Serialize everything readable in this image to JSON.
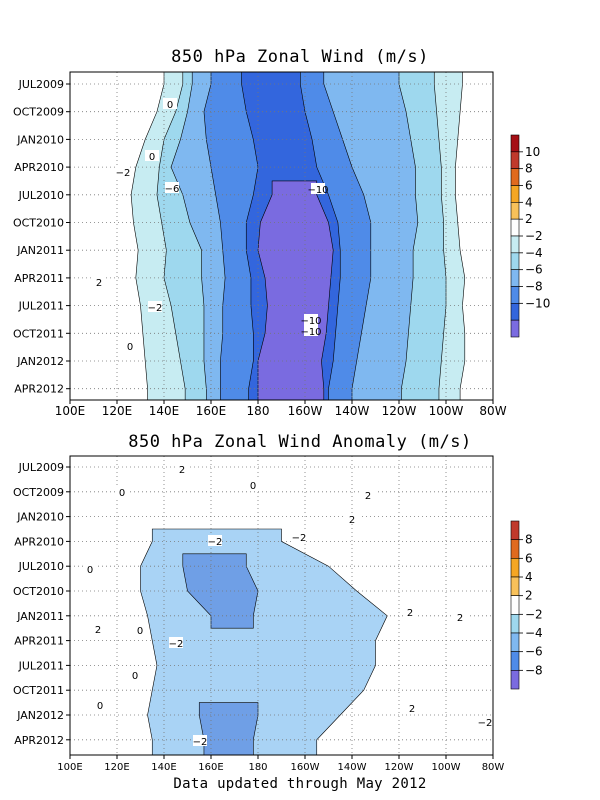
{
  "chart_data": [
    {
      "type": "heatmap",
      "title": "850 hPa Zonal Wind (m/s)",
      "x_ticks": [
        "100E",
        "120E",
        "140E",
        "160E",
        "180",
        "160W",
        "140W",
        "120W",
        "100W",
        "80W"
      ],
      "y_ticks": [
        "JUL2009",
        "OCT2009",
        "JAN2010",
        "APR2010",
        "JUL2010",
        "OCT2010",
        "JAN2011",
        "APR2011",
        "JUL2011",
        "OCT2011",
        "JAN2012",
        "APR2012"
      ],
      "xlim_deg": [
        100,
        280
      ],
      "colorbar": {
        "labels": [
          "10",
          "8",
          "6",
          "4",
          "2",
          "−2",
          "−4",
          "−6",
          "−8",
          "−10"
        ],
        "colors": [
          "#a50f15",
          "#c0392b",
          "#e06a1e",
          "#f5a623",
          "#f8c15a",
          "#ffffff",
          "#c7ecf2",
          "#9ed8ee",
          "#7fb8f0",
          "#4f8be8",
          "#3366dd",
          "#7a6be0"
        ]
      },
      "contour_labels": [
        "0",
        "0",
        "−2",
        "−6",
        "−10",
        "2",
        "−2",
        "0",
        "−10",
        "−10"
      ],
      "fill_bands": [
        {
          "level": "-2..-4",
          "color": "#c7ecf2",
          "lon_w": [
            140,
            137,
            132,
            128,
            126,
            127,
            129,
            128,
            130,
            131,
            132,
            133
          ],
          "lon_e": [
            267,
            266,
            265,
            264,
            264,
            265,
            266,
            268,
            267,
            268,
            268,
            266
          ]
        },
        {
          "level": "-4..-6",
          "color": "#9ed8ee",
          "lon_w": [
            148,
            145,
            140,
            138,
            137,
            139,
            141,
            140,
            143,
            145,
            147,
            149
          ],
          "lon_e": [
            255,
            256,
            257,
            258,
            258,
            259,
            259,
            260,
            260,
            259,
            258,
            257
          ]
        },
        {
          "level": "-6..-8",
          "color": "#7fb8f0",
          "lon_w": [
            152,
            150,
            147,
            143,
            148,
            151,
            156,
            156,
            157,
            157,
            157,
            158
          ],
          "lon_e": [
            240,
            243,
            245,
            247,
            247,
            248,
            246,
            246,
            245,
            244,
            243,
            241
          ]
        },
        {
          "level": "-8..-10",
          "color": "#4f8be8",
          "lon_w": [
            160,
            157,
            158,
            160,
            162,
            164,
            165,
            166,
            165,
            165,
            164,
            164
          ],
          "lon_e": [
            208,
            212,
            216,
            220,
            225,
            228,
            228,
            228,
            226,
            224,
            222,
            220
          ]
        },
        {
          "level": "-10..-12",
          "color": "#3366dd",
          "lon_w": [
            173,
            175,
            178,
            180,
            178,
            175,
            175,
            177,
            177,
            178,
            178,
            176
          ],
          "lon_e": [
            198,
            200,
            203,
            205,
            210,
            214,
            215,
            215,
            214,
            213,
            212,
            210
          ]
        },
        {
          "level": "<-10",
          "color": "#7a6be0",
          "lon_w": [
            null,
            null,
            null,
            null,
            186,
            181,
            180,
            183,
            184,
            183,
            180,
            180
          ],
          "lon_e": [
            null,
            null,
            null,
            null,
            205,
            210,
            212,
            211,
            210,
            209,
            207,
            208
          ]
        }
      ]
    },
    {
      "type": "heatmap",
      "title": "850 hPa Zonal Wind Anomaly (m/s)",
      "x_ticks": [
        "100E",
        "120E",
        "140E",
        "160E",
        "180",
        "160W",
        "140W",
        "120W",
        "100W",
        "80W"
      ],
      "y_ticks": [
        "JUL2009",
        "OCT2009",
        "JAN2010",
        "APR2010",
        "JUL2010",
        "OCT2010",
        "JAN2011",
        "APR2011",
        "JUL2011",
        "OCT2011",
        "JAN2012",
        "APR2012"
      ],
      "xlim_deg": [
        100,
        280
      ],
      "colorbar": {
        "labels": [
          "8",
          "6",
          "4",
          "2",
          "−2",
          "−4",
          "−6",
          "−8"
        ],
        "colors": [
          "#c0392b",
          "#e06a1e",
          "#f5a623",
          "#f8c15a",
          "#ffffff",
          "#9ed8ee",
          "#7fb8f0",
          "#4f8be8",
          "#7a6be0"
        ]
      },
      "contour_labels": [
        "2",
        "0",
        "0",
        "2",
        "2",
        "−2",
        "0",
        "0",
        "2",
        "2",
        "2",
        "−2",
        "0",
        "−2",
        "0",
        "2",
        "−2",
        "−2"
      ],
      "fill_bands": [
        {
          "level": "-2..-4",
          "color": "#a9d3f5",
          "lon_w": [
            null,
            null,
            null,
            135,
            130,
            130,
            133,
            135,
            137,
            135,
            133,
            135
          ],
          "lon_e": [
            null,
            null,
            null,
            190,
            210,
            222,
            235,
            230,
            230,
            225,
            215,
            205
          ]
        },
        {
          "level": "-4..-6",
          "color": "#6f9fe6",
          "lon_w": [
            null,
            null,
            null,
            null,
            148,
            150,
            160,
            null,
            null,
            null,
            155,
            157
          ],
          "lon_e": [
            null,
            null,
            null,
            null,
            175,
            180,
            178,
            null,
            null,
            null,
            180,
            178
          ]
        }
      ]
    }
  ],
  "footer": "Data updated through May 2012"
}
